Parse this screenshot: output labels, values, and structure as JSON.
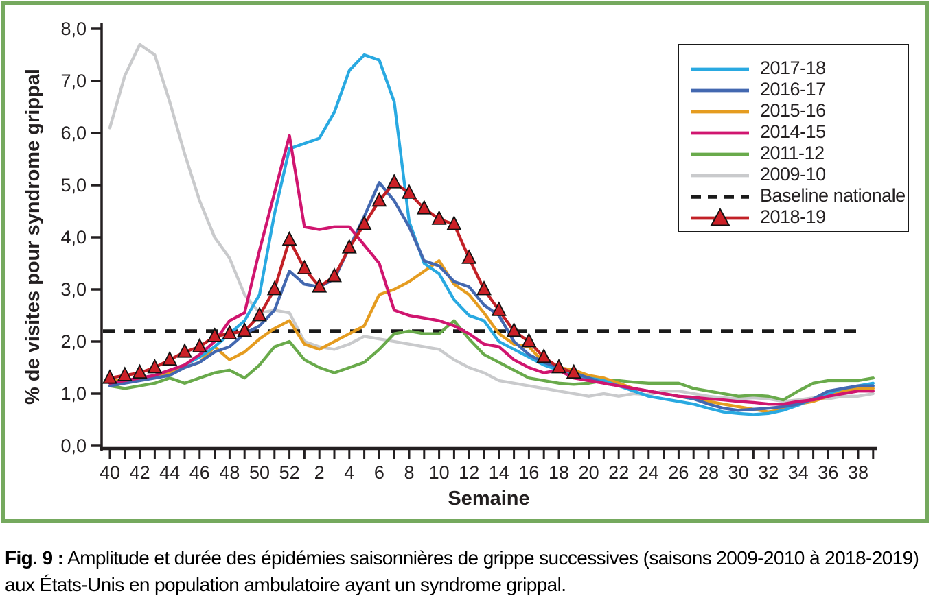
{
  "figure": {
    "caption_label": "Fig. 9 :",
    "caption_text": " Amplitude et durée des épidémies saisonnières de grippe successives (saisons 2009-2010 à 2018-2019) aux États-Unis en population ambulatoire ayant un syndrome grippal.",
    "border_color": "#75a95e"
  },
  "chart_data": {
    "type": "line",
    "title": "",
    "xlabel": "Semaine",
    "ylabel": "% de visites pour syndrome grippal",
    "ylim": [
      0,
      8
    ],
    "ytick_labels": [
      "0,0",
      "1,0",
      "2,0",
      "3,0",
      "4,0",
      "5,0",
      "6,0",
      "7,0",
      "8,0"
    ],
    "weeks": [
      40,
      41,
      42,
      43,
      44,
      45,
      46,
      47,
      48,
      49,
      50,
      51,
      52,
      1,
      2,
      3,
      4,
      5,
      6,
      7,
      8,
      9,
      10,
      11,
      12,
      13,
      14,
      15,
      16,
      17,
      18,
      19,
      20,
      21,
      22,
      23,
      24,
      25,
      26,
      27,
      28,
      29,
      30,
      31,
      32,
      33,
      34,
      35,
      36,
      37,
      38,
      39
    ],
    "xticks_labeled_every": 2,
    "grid": false,
    "legend_position": "top-right",
    "baseline": {
      "label": "Baseline nationale",
      "value": 2.2,
      "color": "#1a1a1a",
      "style": "dashed"
    },
    "legend_order": [
      "2017-18",
      "2016-17",
      "2015-16",
      "2014-15",
      "2011-12",
      "2009-10",
      "Baseline nationale",
      "2018-19"
    ],
    "series": [
      {
        "name": "2009-10",
        "color": "#c9cacc",
        "marker": "none",
        "values": [
          6.1,
          7.1,
          7.7,
          7.5,
          6.6,
          5.6,
          4.7,
          4.0,
          3.6,
          2.9,
          2.55,
          2.6,
          2.55,
          2.0,
          1.9,
          1.85,
          1.95,
          2.1,
          2.05,
          2.0,
          1.95,
          1.9,
          1.85,
          1.65,
          1.5,
          1.4,
          1.25,
          1.2,
          1.15,
          1.1,
          1.05,
          1.0,
          0.95,
          1.0,
          0.95,
          1.0,
          0.98,
          1.05,
          1.05,
          1.0,
          0.95,
          0.92,
          0.9,
          0.92,
          0.9,
          0.85,
          0.88,
          0.92,
          0.9,
          0.95,
          0.95,
          1.0
        ]
      },
      {
        "name": "2011-12",
        "color": "#69aa4b",
        "marker": "none",
        "values": [
          1.15,
          1.1,
          1.15,
          1.2,
          1.3,
          1.2,
          1.3,
          1.4,
          1.45,
          1.3,
          1.55,
          1.9,
          2.0,
          1.65,
          1.5,
          1.4,
          1.5,
          1.6,
          1.85,
          2.15,
          2.2,
          2.15,
          2.15,
          2.4,
          2.05,
          1.75,
          1.6,
          1.45,
          1.3,
          1.25,
          1.2,
          1.18,
          1.2,
          1.25,
          1.25,
          1.22,
          1.2,
          1.2,
          1.2,
          1.1,
          1.05,
          1.0,
          0.95,
          0.97,
          0.95,
          0.88,
          1.05,
          1.2,
          1.25,
          1.25,
          1.25,
          1.3
        ]
      },
      {
        "name": "2015-16",
        "color": "#e59c20",
        "marker": "none",
        "values": [
          1.25,
          1.25,
          1.3,
          1.3,
          1.4,
          1.5,
          1.6,
          1.9,
          1.65,
          1.8,
          2.05,
          2.25,
          2.4,
          1.95,
          1.85,
          2.0,
          2.15,
          2.3,
          2.9,
          3.0,
          3.15,
          3.35,
          3.55,
          3.1,
          2.9,
          2.55,
          2.15,
          1.95,
          1.9,
          1.6,
          1.5,
          1.45,
          1.35,
          1.3,
          1.2,
          1.1,
          1.05,
          1.0,
          0.95,
          0.9,
          0.85,
          0.8,
          0.75,
          0.7,
          0.65,
          0.7,
          0.8,
          0.85,
          0.95,
          1.05,
          1.1,
          1.1
        ]
      },
      {
        "name": "2017-18",
        "color": "#29a9e1",
        "marker": "none",
        "values": [
          1.2,
          1.25,
          1.3,
          1.35,
          1.45,
          1.55,
          1.7,
          1.9,
          2.15,
          2.4,
          2.9,
          4.45,
          5.7,
          5.8,
          5.9,
          6.4,
          7.2,
          7.5,
          7.4,
          6.6,
          4.3,
          3.5,
          3.3,
          2.8,
          2.5,
          2.4,
          2.0,
          1.85,
          1.7,
          1.55,
          1.45,
          1.35,
          1.3,
          1.25,
          1.15,
          1.05,
          0.95,
          0.9,
          0.85,
          0.8,
          0.72,
          0.65,
          0.62,
          0.6,
          0.62,
          0.68,
          0.78,
          0.9,
          1.0,
          1.1,
          1.15,
          1.2
        ]
      },
      {
        "name": "2016-17",
        "color": "#4368b0",
        "marker": "none",
        "values": [
          1.15,
          1.2,
          1.25,
          1.3,
          1.35,
          1.5,
          1.6,
          1.8,
          1.9,
          2.15,
          2.3,
          2.6,
          3.35,
          3.1,
          3.05,
          3.2,
          3.8,
          4.4,
          5.05,
          4.7,
          4.2,
          3.55,
          3.45,
          3.15,
          3.05,
          2.7,
          2.5,
          2.0,
          1.75,
          1.6,
          1.5,
          1.4,
          1.3,
          1.2,
          1.15,
          1.1,
          1.05,
          1.0,
          0.95,
          0.9,
          0.8,
          0.72,
          0.68,
          0.7,
          0.72,
          0.75,
          0.8,
          0.9,
          1.05,
          1.1,
          1.15,
          1.15
        ]
      },
      {
        "name": "2014-15",
        "color": "#d0156f",
        "marker": "none",
        "values": [
          1.2,
          1.25,
          1.3,
          1.35,
          1.45,
          1.55,
          1.75,
          2.0,
          2.4,
          2.55,
          3.75,
          4.85,
          5.95,
          4.2,
          4.15,
          4.2,
          4.2,
          3.85,
          3.5,
          2.6,
          2.5,
          2.45,
          2.4,
          2.3,
          2.15,
          1.95,
          1.9,
          1.65,
          1.5,
          1.4,
          1.45,
          1.3,
          1.25,
          1.2,
          1.15,
          1.1,
          1.05,
          1.0,
          0.95,
          0.93,
          0.9,
          0.88,
          0.85,
          0.83,
          0.8,
          0.8,
          0.85,
          0.88,
          0.95,
          1.0,
          1.05,
          1.05
        ]
      },
      {
        "name": "2018-19",
        "color": "#c22026",
        "marker": "triangle",
        "marker_fill": "#cc2027",
        "values": [
          1.3,
          1.35,
          1.4,
          1.5,
          1.65,
          1.8,
          1.9,
          2.1,
          2.15,
          2.2,
          2.5,
          3.0,
          3.95,
          3.4,
          3.05,
          3.25,
          3.8,
          4.25,
          4.7,
          5.05,
          4.85,
          4.55,
          4.35,
          4.25,
          3.6,
          3.0,
          2.6,
          2.2,
          2.0,
          1.7,
          1.5,
          1.4,
          null,
          null,
          null,
          null,
          null,
          null,
          null,
          null,
          null,
          null,
          null,
          null,
          null,
          null,
          null,
          null,
          null,
          null,
          null,
          null
        ]
      }
    ]
  }
}
